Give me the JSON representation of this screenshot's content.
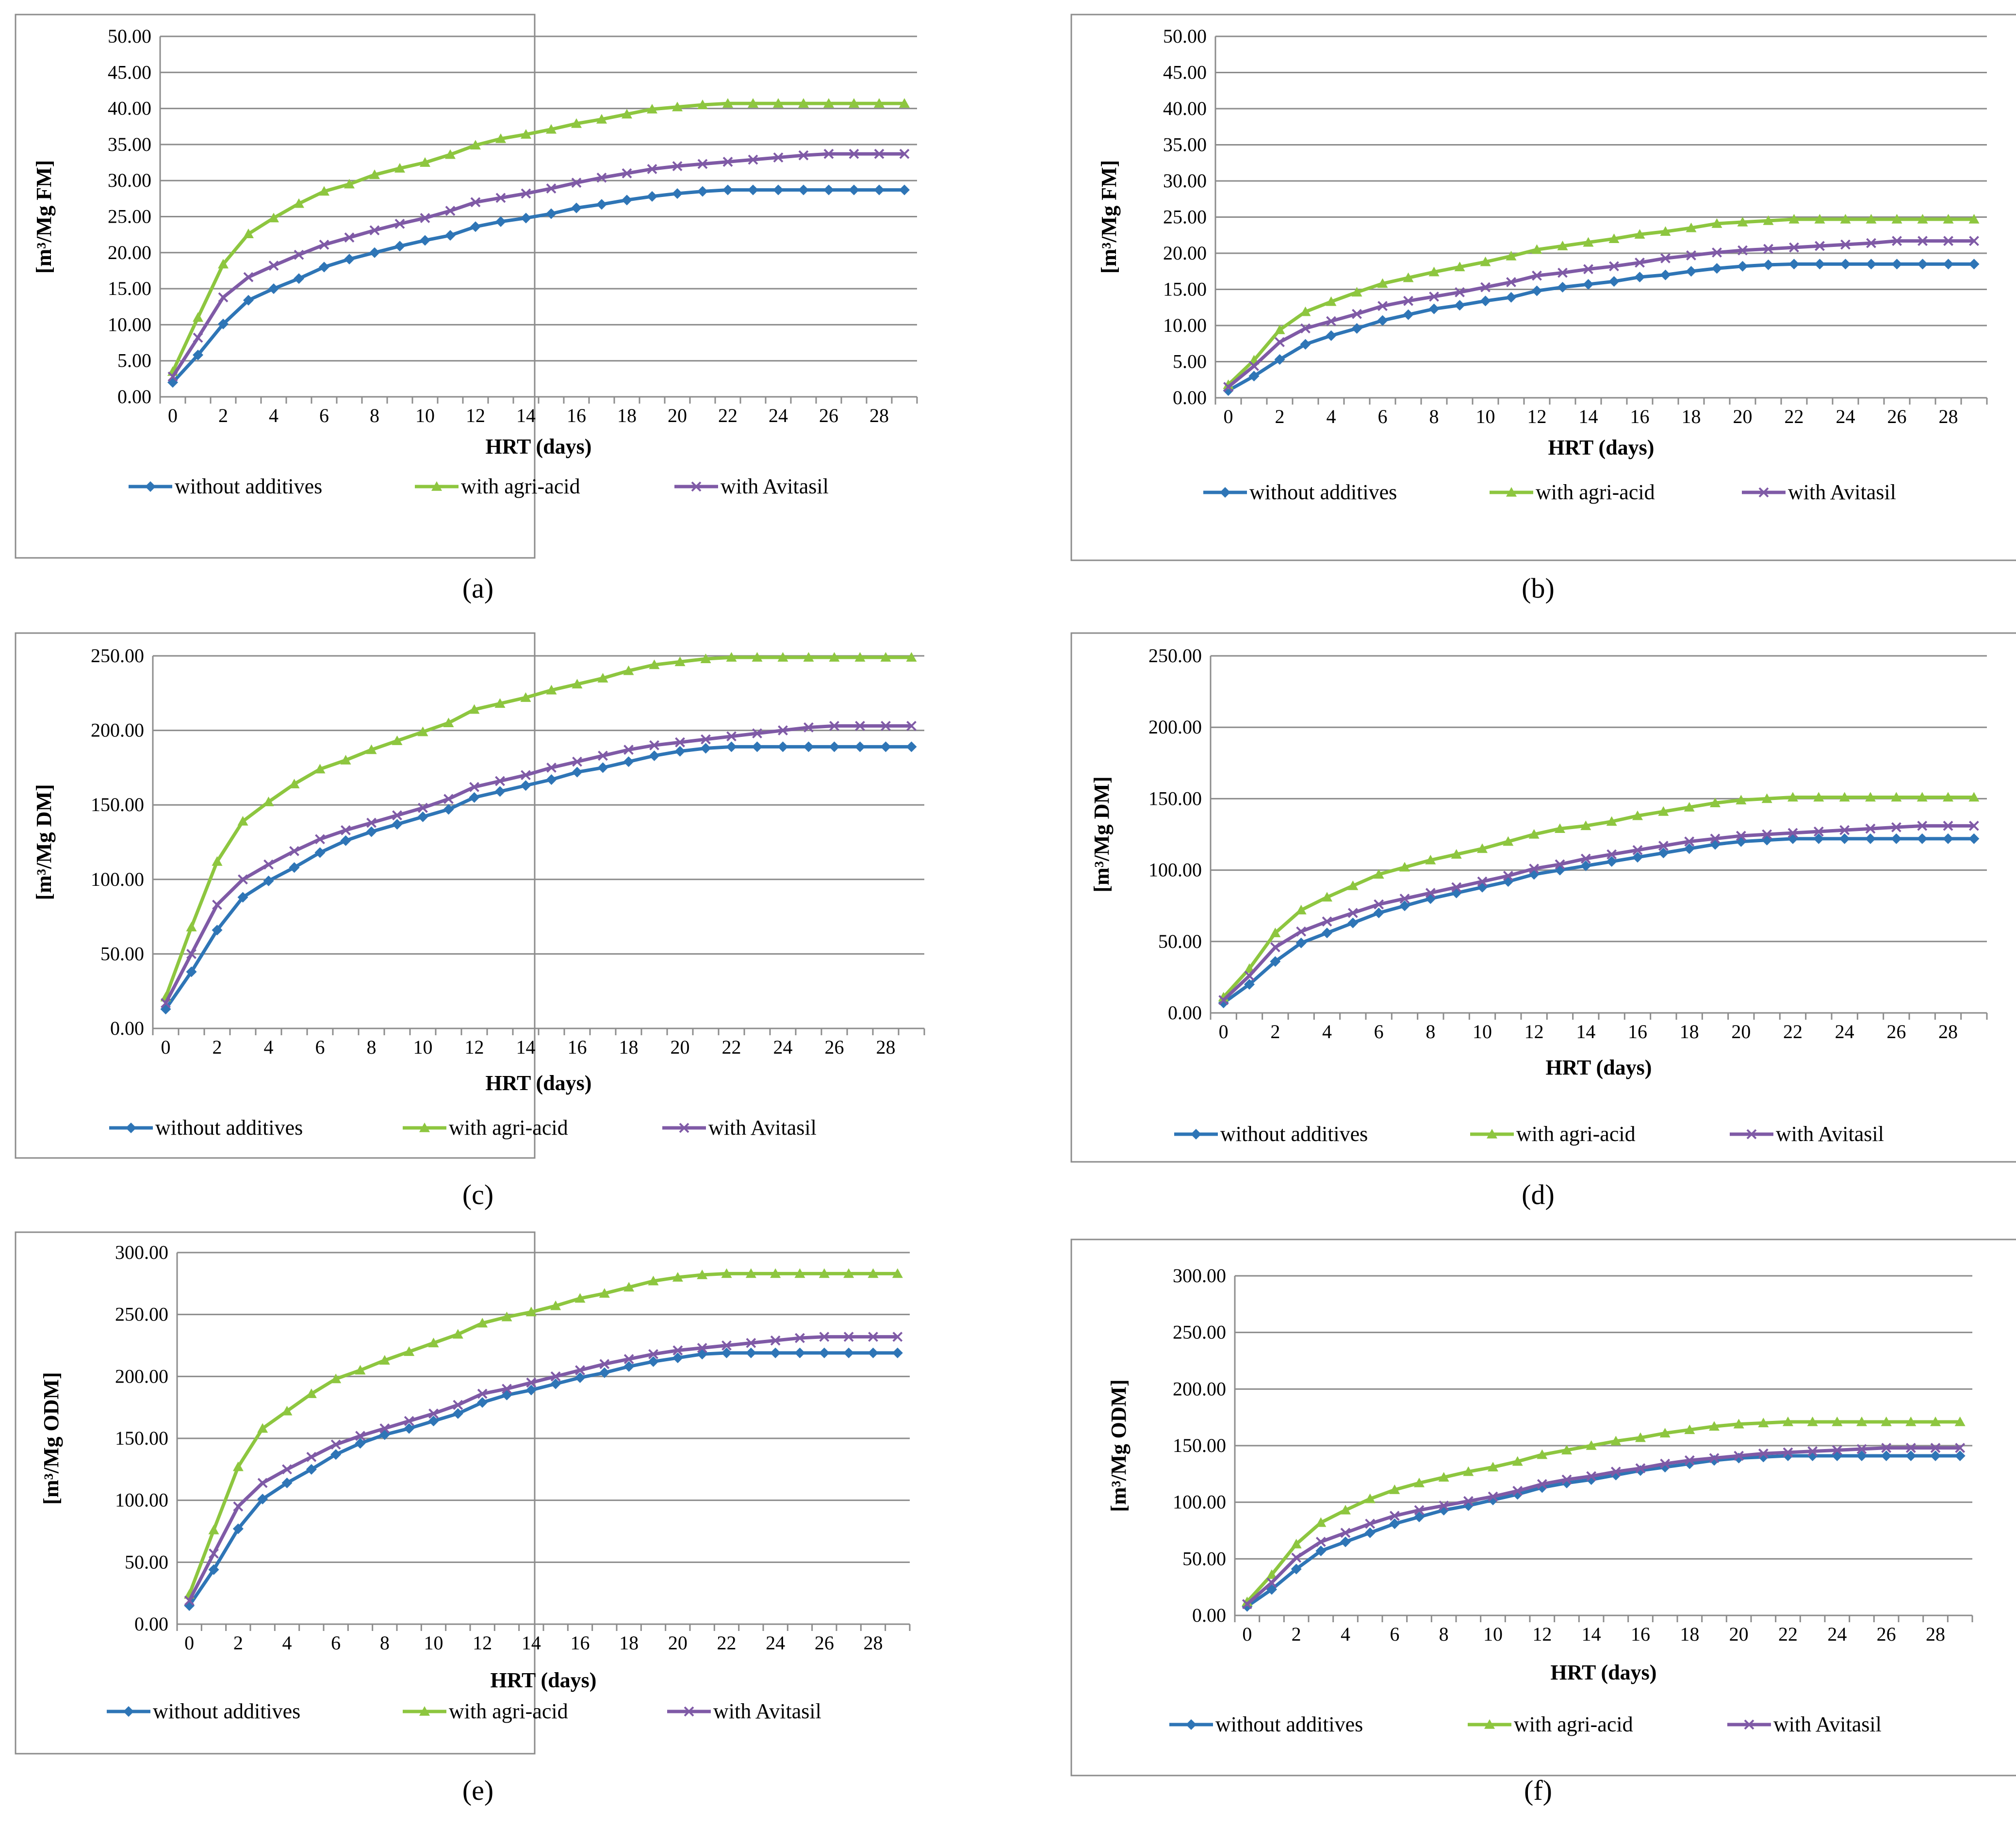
{
  "colors": {
    "without_additives": "#2E75B6",
    "with_agri_acid": "#8DC63F",
    "with_avitasil": "#7F5AA6",
    "grid": "#8C8C8C",
    "frame": "#8C8C8C"
  },
  "legend_labels": [
    "without additives",
    "with agri-acid",
    "with Avitasil"
  ],
  "chart_data": [
    {
      "type": "line",
      "panel_label": "(a)",
      "ylabel": "[m³/Mg FM]",
      "xlabel": "HRT (days)",
      "ylim": [
        0,
        50
      ],
      "ystep": 5,
      "y_tick_labels": [
        "0.00",
        "5.00",
        "10.00",
        "15.00",
        "20.00",
        "25.00",
        "30.00",
        "35.00",
        "40.00",
        "45.00",
        "50.00"
      ],
      "x": [
        0,
        1,
        2,
        3,
        4,
        5,
        6,
        7,
        8,
        9,
        10,
        11,
        12,
        13,
        14,
        15,
        16,
        17,
        18,
        19,
        20,
        21,
        22,
        23,
        24,
        25,
        26,
        27,
        28,
        29
      ],
      "x_tick_labels": [
        "0",
        "2",
        "4",
        "6",
        "8",
        "10",
        "12",
        "14",
        "16",
        "18",
        "20",
        "22",
        "24",
        "26",
        "28"
      ],
      "grid": true,
      "legend_position": "bottom",
      "series": [
        {
          "name": "without additives",
          "values": [
            2.0,
            5.8,
            10.1,
            13.4,
            15.0,
            16.4,
            18.0,
            19.1,
            20.0,
            20.9,
            21.7,
            22.4,
            23.6,
            24.3,
            24.8,
            25.4,
            26.2,
            26.7,
            27.3,
            27.8,
            28.2,
            28.5,
            28.7,
            28.7,
            28.7,
            28.7,
            28.7,
            28.7,
            28.7,
            28.7
          ]
        },
        {
          "name": "with agri-acid",
          "values": [
            3.5,
            11.0,
            18.4,
            22.6,
            24.8,
            26.8,
            28.5,
            29.5,
            30.8,
            31.7,
            32.5,
            33.6,
            34.9,
            35.8,
            36.4,
            37.1,
            37.9,
            38.5,
            39.2,
            39.9,
            40.2,
            40.5,
            40.7,
            40.7,
            40.7,
            40.7,
            40.7,
            40.7,
            40.7,
            40.7
          ]
        },
        {
          "name": "with Avitasil",
          "values": [
            2.8,
            8.2,
            13.8,
            16.6,
            18.2,
            19.7,
            21.1,
            22.1,
            23.1,
            24.0,
            24.8,
            25.8,
            27.0,
            27.6,
            28.2,
            28.9,
            29.7,
            30.4,
            31.0,
            31.6,
            32.0,
            32.3,
            32.6,
            32.9,
            33.2,
            33.5,
            33.7,
            33.7,
            33.7,
            33.7
          ]
        }
      ]
    },
    {
      "type": "line",
      "panel_label": "(b)",
      "ylabel": "[m³/Mg FM]",
      "xlabel": "HRT (days)",
      "ylim": [
        0,
        50
      ],
      "ystep": 5,
      "y_tick_labels": [
        "0.00",
        "5.00",
        "10.00",
        "15.00",
        "20.00",
        "25.00",
        "30.00",
        "35.00",
        "40.00",
        "45.00",
        "50.00"
      ],
      "x": [
        0,
        1,
        2,
        3,
        4,
        5,
        6,
        7,
        8,
        9,
        10,
        11,
        12,
        13,
        14,
        15,
        16,
        17,
        18,
        19,
        20,
        21,
        22,
        23,
        24,
        25,
        26,
        27,
        28,
        29
      ],
      "x_tick_labels": [
        "0",
        "2",
        "4",
        "6",
        "8",
        "10",
        "12",
        "14",
        "16",
        "18",
        "20",
        "22",
        "24",
        "26",
        "28"
      ],
      "grid": true,
      "legend_position": "bottom",
      "series": [
        {
          "name": "without additives",
          "values": [
            1.0,
            3.0,
            5.3,
            7.4,
            8.6,
            9.6,
            10.7,
            11.5,
            12.3,
            12.8,
            13.4,
            13.9,
            14.8,
            15.3,
            15.7,
            16.1,
            16.7,
            17.0,
            17.5,
            17.9,
            18.2,
            18.4,
            18.5,
            18.5,
            18.5,
            18.5,
            18.5,
            18.5,
            18.5,
            18.5
          ]
        },
        {
          "name": "with agri-acid",
          "values": [
            1.8,
            5.2,
            9.4,
            11.9,
            13.3,
            14.6,
            15.8,
            16.6,
            17.4,
            18.1,
            18.8,
            19.6,
            20.5,
            21.0,
            21.5,
            22.0,
            22.6,
            23.0,
            23.5,
            24.1,
            24.3,
            24.5,
            24.7,
            24.7,
            24.7,
            24.7,
            24.7,
            24.7,
            24.7,
            24.7
          ]
        },
        {
          "name": "with Avitasil",
          "values": [
            1.5,
            4.4,
            7.7,
            9.6,
            10.6,
            11.6,
            12.7,
            13.4,
            14.0,
            14.6,
            15.3,
            16.0,
            16.9,
            17.3,
            17.8,
            18.2,
            18.7,
            19.3,
            19.7,
            20.1,
            20.4,
            20.6,
            20.8,
            21.0,
            21.2,
            21.4,
            21.7,
            21.7,
            21.7,
            21.7
          ]
        }
      ]
    },
    {
      "type": "line",
      "panel_label": "(c)",
      "ylabel": "[m³/Mg DM]",
      "xlabel": "HRT (days)",
      "ylim": [
        0,
        250
      ],
      "ystep": 50,
      "y_tick_labels": [
        "0.00",
        "50.00",
        "100.00",
        "150.00",
        "200.00",
        "250.00"
      ],
      "x": [
        0,
        1,
        2,
        3,
        4,
        5,
        6,
        7,
        8,
        9,
        10,
        11,
        12,
        13,
        14,
        15,
        16,
        17,
        18,
        19,
        20,
        21,
        22,
        23,
        24,
        25,
        26,
        27,
        28,
        29
      ],
      "x_tick_labels": [
        "0",
        "2",
        "4",
        "6",
        "8",
        "10",
        "12",
        "14",
        "16",
        "18",
        "20",
        "22",
        "24",
        "26",
        "28"
      ],
      "grid": true,
      "legend_position": "bottom",
      "series": [
        {
          "name": "without additives",
          "values": [
            13,
            38,
            66,
            88,
            99,
            108,
            118,
            126,
            132,
            137,
            142,
            147,
            155,
            159,
            163,
            167,
            172,
            175,
            179,
            183,
            186,
            188,
            189,
            189,
            189,
            189,
            189,
            189,
            189,
            189
          ]
        },
        {
          "name": "with agri-acid",
          "values": [
            21,
            68,
            112,
            139,
            152,
            164,
            174,
            180,
            187,
            193,
            199,
            205,
            214,
            218,
            222,
            227,
            231,
            235,
            240,
            244,
            246,
            248,
            249,
            249,
            249,
            249,
            249,
            249,
            249,
            249
          ]
        },
        {
          "name": "with Avitasil",
          "values": [
            17,
            50,
            83,
            100,
            110,
            119,
            127,
            133,
            138,
            143,
            148,
            154,
            162,
            166,
            170,
            175,
            179,
            183,
            187,
            190,
            192,
            194,
            196,
            198,
            200,
            202,
            203,
            203,
            203,
            203
          ]
        }
      ]
    },
    {
      "type": "line",
      "panel_label": "(d)",
      "ylabel": "[m³/Mg DM]",
      "xlabel": "HRT (days)",
      "ylim": [
        0,
        250
      ],
      "ystep": 50,
      "y_tick_labels": [
        "0.00",
        "50.00",
        "100.00",
        "150.00",
        "200.00",
        "250.00"
      ],
      "x": [
        0,
        1,
        2,
        3,
        4,
        5,
        6,
        7,
        8,
        9,
        10,
        11,
        12,
        13,
        14,
        15,
        16,
        17,
        18,
        19,
        20,
        21,
        22,
        23,
        24,
        25,
        26,
        27,
        28,
        29
      ],
      "x_tick_labels": [
        "0",
        "2",
        "4",
        "6",
        "8",
        "10",
        "12",
        "14",
        "16",
        "18",
        "20",
        "22",
        "24",
        "26",
        "28"
      ],
      "grid": true,
      "legend_position": "bottom",
      "series": [
        {
          "name": "without additives",
          "values": [
            7,
            20,
            36,
            49,
            56,
            63,
            70,
            75,
            80,
            84,
            88,
            92,
            97,
            100,
            103,
            106,
            109,
            112,
            115,
            118,
            120,
            121,
            122,
            122,
            122,
            122,
            122,
            122,
            122,
            122
          ]
        },
        {
          "name": "with agri-acid",
          "values": [
            11,
            31,
            56,
            72,
            81,
            89,
            97,
            102,
            107,
            111,
            115,
            120,
            125,
            129,
            131,
            134,
            138,
            141,
            144,
            147,
            149,
            150,
            151,
            151,
            151,
            151,
            151,
            151,
            151,
            151
          ]
        },
        {
          "name": "with Avitasil",
          "values": [
            9,
            26,
            46,
            57,
            64,
            70,
            76,
            80,
            84,
            88,
            92,
            96,
            101,
            104,
            108,
            111,
            114,
            117,
            120,
            122,
            124,
            125,
            126,
            127,
            128,
            129,
            130,
            131,
            131,
            131
          ]
        }
      ]
    },
    {
      "type": "line",
      "panel_label": "(e)",
      "ylabel": "[m³/Mg ODM]",
      "xlabel": "HRT (days)",
      "ylim": [
        0,
        300
      ],
      "ystep": 50,
      "y_tick_labels": [
        "0.00",
        "50.00",
        "100.00",
        "150.00",
        "200.00",
        "250.00",
        "300.00"
      ],
      "x": [
        0,
        1,
        2,
        3,
        4,
        5,
        6,
        7,
        8,
        9,
        10,
        11,
        12,
        13,
        14,
        15,
        16,
        17,
        18,
        19,
        20,
        21,
        22,
        23,
        24,
        25,
        26,
        27,
        28,
        29
      ],
      "x_tick_labels": [
        "0",
        "2",
        "4",
        "6",
        "8",
        "10",
        "12",
        "14",
        "16",
        "18",
        "20",
        "22",
        "24",
        "26",
        "28"
      ],
      "grid": true,
      "legend_position": "bottom",
      "series": [
        {
          "name": "without additives",
          "values": [
            15,
            44,
            77,
            101,
            114,
            125,
            137,
            146,
            153,
            158,
            164,
            170,
            179,
            185,
            189,
            194,
            199,
            203,
            208,
            212,
            215,
            218,
            219,
            219,
            219,
            219,
            219,
            219,
            219,
            219
          ]
        },
        {
          "name": "with agri-acid",
          "values": [
            24,
            76,
            127,
            158,
            172,
            186,
            198,
            205,
            213,
            220,
            227,
            234,
            243,
            248,
            252,
            257,
            263,
            267,
            272,
            277,
            280,
            282,
            283,
            283,
            283,
            283,
            283,
            283,
            283,
            283
          ]
        },
        {
          "name": "with Avitasil",
          "values": [
            19,
            57,
            95,
            114,
            125,
            135,
            145,
            152,
            158,
            164,
            170,
            177,
            186,
            190,
            195,
            200,
            205,
            210,
            214,
            218,
            221,
            223,
            225,
            227,
            229,
            231,
            232,
            232,
            232,
            232
          ]
        }
      ]
    },
    {
      "type": "line",
      "panel_label": "(f)",
      "ylabel": "[m³/Mg ODM]",
      "xlabel": "HRT (days)",
      "ylim": [
        0,
        300
      ],
      "ystep": 50,
      "y_tick_labels": [
        "0.00",
        "50.00",
        "100.00",
        "150.00",
        "200.00",
        "250.00",
        "300.00"
      ],
      "x": [
        0,
        1,
        2,
        3,
        4,
        5,
        6,
        7,
        8,
        9,
        10,
        11,
        12,
        13,
        14,
        15,
        16,
        17,
        18,
        19,
        20,
        21,
        22,
        23,
        24,
        25,
        26,
        27,
        28,
        29
      ],
      "x_tick_labels": [
        "0",
        "2",
        "4",
        "6",
        "8",
        "10",
        "12",
        "14",
        "16",
        "18",
        "20",
        "22",
        "24",
        "26",
        "28"
      ],
      "grid": true,
      "legend_position": "bottom",
      "series": [
        {
          "name": "without additives",
          "values": [
            8,
            23,
            41,
            57,
            65,
            73,
            81,
            87,
            93,
            97,
            102,
            107,
            113,
            117,
            120,
            124,
            128,
            131,
            134,
            137,
            139,
            140,
            141,
            141,
            141,
            141,
            141,
            141,
            141,
            141
          ]
        },
        {
          "name": "with agri-acid",
          "values": [
            12,
            36,
            63,
            82,
            93,
            103,
            111,
            117,
            122,
            127,
            131,
            136,
            142,
            146,
            150,
            154,
            157,
            161,
            164,
            167,
            169,
            170,
            171,
            171,
            171,
            171,
            171,
            171,
            171,
            171
          ]
        },
        {
          "name": "with Avitasil",
          "values": [
            10,
            29,
            51,
            65,
            73,
            81,
            88,
            93,
            97,
            101,
            105,
            110,
            116,
            120,
            123,
            127,
            130,
            134,
            137,
            139,
            141,
            143,
            144,
            145,
            146,
            147,
            148,
            148,
            148,
            148
          ]
        }
      ]
    }
  ]
}
